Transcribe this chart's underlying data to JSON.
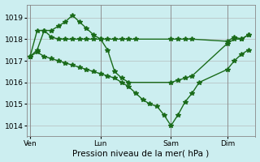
{
  "background_color": "#cceef0",
  "grid_color": "#b0b0b0",
  "line_color": "#1a6b1a",
  "marker": "*",
  "marker_size": 4,
  "line_width": 1.0,
  "xlabel": "Pression niveau de la mer( hPa )",
  "xlabel_fontsize": 7.5,
  "ytick_fontsize": 6.5,
  "xtick_fontsize": 6.5,
  "yticks": [
    1014,
    1015,
    1016,
    1017,
    1018,
    1019
  ],
  "ylim": [
    1013.5,
    1019.6
  ],
  "xtick_labels": [
    "Ven",
    "Lun",
    "Sam",
    "Dim"
  ],
  "xtick_positions": [
    0,
    10,
    20,
    28
  ],
  "xlim": [
    -0.5,
    32
  ],
  "series1_x": [
    0,
    1,
    2,
    3,
    4,
    5,
    6,
    7,
    8,
    9,
    10,
    11,
    12,
    13,
    14,
    15,
    20,
    21,
    22,
    23,
    28,
    29,
    30,
    31
  ],
  "series1_y": [
    1017.2,
    1018.4,
    1018.4,
    1018.1,
    1018.0,
    1018.0,
    1018.0,
    1018.0,
    1018.0,
    1018.0,
    1018.0,
    1018.0,
    1018.0,
    1018.0,
    1018.0,
    1018.0,
    1018.0,
    1018.0,
    1018.0,
    1018.0,
    1017.9,
    1018.1,
    1018.0,
    1018.2
  ],
  "series2_x": [
    0,
    1,
    2,
    3,
    4,
    5,
    6,
    7,
    8,
    9,
    10,
    11,
    12,
    13,
    14,
    20,
    21,
    22,
    23,
    28,
    29,
    30,
    31
  ],
  "series2_y": [
    1017.2,
    1017.5,
    1018.4,
    1018.4,
    1018.6,
    1018.8,
    1019.1,
    1018.8,
    1018.5,
    1018.2,
    1018.0,
    1017.5,
    1016.5,
    1016.2,
    1016.0,
    1016.0,
    1016.1,
    1016.2,
    1016.3,
    1017.8,
    1018.0,
    1018.0,
    1018.2
  ],
  "series3_x": [
    0,
    1,
    2,
    3,
    4,
    5,
    6,
    7,
    8,
    9,
    10,
    11,
    12,
    13,
    14,
    15,
    16,
    17,
    18,
    19,
    20,
    21,
    22,
    23,
    24,
    28,
    29,
    30,
    31
  ],
  "series3_y": [
    1017.2,
    1017.4,
    1017.2,
    1017.1,
    1017.0,
    1016.9,
    1016.8,
    1016.7,
    1016.6,
    1016.5,
    1016.4,
    1016.3,
    1016.2,
    1016.0,
    1015.8,
    1015.5,
    1015.2,
    1015.0,
    1014.9,
    1014.5,
    1014.0,
    1014.5,
    1015.1,
    1015.5,
    1016.0,
    1016.6,
    1017.0,
    1017.3,
    1017.5
  ]
}
